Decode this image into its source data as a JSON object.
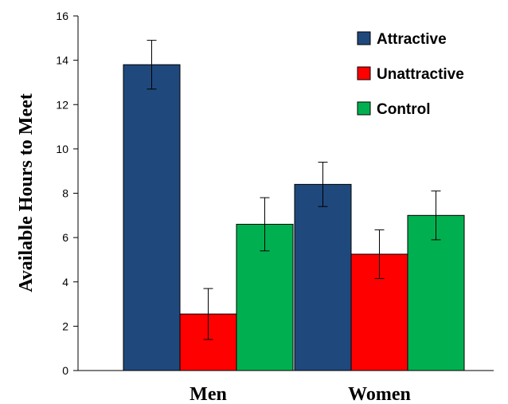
{
  "chart_data": {
    "type": "bar",
    "categories": [
      "Men",
      "Women"
    ],
    "series": [
      {
        "name": "Attractive",
        "color": "#1f497d",
        "values": [
          13.8,
          8.4
        ],
        "errors": [
          1.1,
          1.0
        ]
      },
      {
        "name": "Unattractive",
        "color": "#ff0000",
        "values": [
          2.55,
          5.25
        ],
        "errors": [
          1.15,
          1.1
        ]
      },
      {
        "name": "Control",
        "color": "#00b050",
        "values": [
          6.6,
          7.0
        ],
        "errors": [
          1.2,
          1.1
        ]
      }
    ],
    "ylabel": "Available Hours to Meet",
    "xlabel": "",
    "ylim": [
      0,
      16
    ],
    "yticks": [
      "0",
      "2",
      "4",
      "6",
      "8",
      "10",
      "12",
      "14",
      "16"
    ],
    "legend": {
      "position": "top-right"
    },
    "grid": false
  }
}
